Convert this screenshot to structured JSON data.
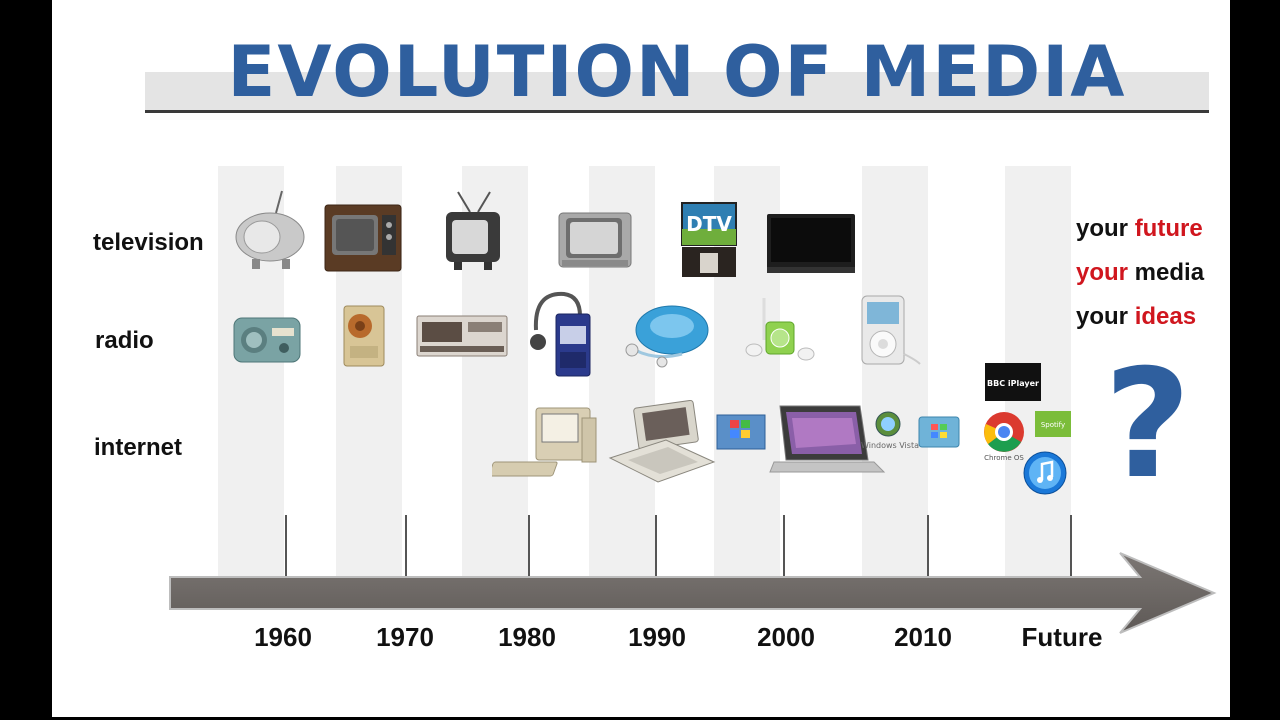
{
  "title": "EVOLUTION OF MEDIA",
  "rows": {
    "television": "television",
    "radio": "radio",
    "internet": "internet"
  },
  "timeline": {
    "years": [
      "1960",
      "1970",
      "1980",
      "1990",
      "2000",
      "2010",
      "Future"
    ]
  },
  "tagline": {
    "line1_a": "your ",
    "line1_b": "future",
    "line2_a": "your",
    "line2_b": " media",
    "line3_a": "your ",
    "line3_b": "ideas"
  },
  "question_mark": "?",
  "device_labels": {
    "dtv": "DTV",
    "bbc": "BBC iPlayer",
    "spotify": "Spotify",
    "chrome_os": "Chrome OS",
    "windows_vista": "Windows Vista"
  },
  "colors": {
    "title_blue": "#2f5f9e",
    "accent_red": "#d0161e",
    "arrow_gray": "#6e6966"
  }
}
